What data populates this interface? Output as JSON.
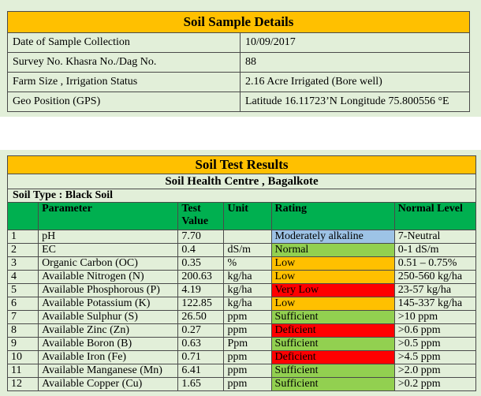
{
  "details": {
    "title": "Soil Sample Details",
    "rows": [
      {
        "label": "Date of Sample Collection",
        "value": "10/09/2017"
      },
      {
        "label": "Survey No. Khasra No./Dag No.",
        "value": "88"
      },
      {
        "label": "Farm Size , Irrigation Status",
        "value": "2.16 Acre Irrigated (Bore well)"
      },
      {
        "label": "Geo Position (GPS)",
        "value": "Latitude 16.11723’N   Longitude 75.800556 °E"
      }
    ]
  },
  "results": {
    "title": "Soil Test Results",
    "centre": "Soil Health Centre , Bagalkote",
    "soil_type": "Soil Type : Black Soil",
    "headers": {
      "no": "",
      "parameter": "Parameter",
      "test_value": "Test Value",
      "unit": "Unit",
      "rating": "Rating",
      "normal_level": "Normal Level"
    },
    "rating_colors": {
      "Moderately alkaline": "#9dc3e6",
      "Normal": "#92d050",
      "Low": "#ffc000",
      "Very Low": "#ff0000",
      "Sufficient": "#92d050",
      "Deficient": "#ff0000"
    },
    "rows": [
      {
        "no": "1",
        "parameter": "pH",
        "value": "7.70",
        "unit": "",
        "rating": "Moderately alkaline",
        "normal": "7-Neutral"
      },
      {
        "no": "2",
        "parameter": "EC",
        "value": "0.4",
        "unit": "dS/m",
        "rating": "Normal",
        "normal": "0-1 dS/m"
      },
      {
        "no": "3",
        "parameter": "Organic Carbon (OC)",
        "value": "0.35",
        "unit": "%",
        "rating": "Low",
        "normal": "0.51 – 0.75%"
      },
      {
        "no": "4",
        "parameter": "Available Nitrogen (N)",
        "value": "200.63",
        "unit": "kg/ha",
        "rating": "Low",
        "normal": "250-560 kg/ha"
      },
      {
        "no": "5",
        "parameter": "Available Phosphorous (P)",
        "value": "4.19",
        "unit": "kg/ha",
        "rating": "Very Low",
        "normal": "23-57 kg/ha"
      },
      {
        "no": "6",
        "parameter": "Available Potassium (K)",
        "value": "122.85",
        "unit": "kg/ha",
        "rating": "Low",
        "normal": "145-337 kg/ha"
      },
      {
        "no": "7",
        "parameter": "Available Sulphur (S)",
        "value": "26.50",
        "unit": "ppm",
        "rating": "Sufficient",
        "normal": ">10 ppm"
      },
      {
        "no": "8",
        "parameter": "Available Zinc (Zn)",
        "value": "0.27",
        "unit": "ppm",
        "rating": "Deficient",
        "normal": ">0.6 ppm"
      },
      {
        "no": "9",
        "parameter": "Available Boron (B)",
        "value": "0.63",
        "unit": "Ppm",
        "rating": "Sufficient",
        "normal": ">0.5 ppm"
      },
      {
        "no": "10",
        "parameter": "Available Iron (Fe)",
        "value": "0.71",
        "unit": "ppm",
        "rating": "Deficient",
        "normal": ">4.5 ppm"
      },
      {
        "no": "11",
        "parameter": "Available Manganese (Mn)",
        "value": "6.41",
        "unit": "ppm",
        "rating": "Sufficient",
        "normal": ">2.0 ppm"
      },
      {
        "no": "12",
        "parameter": "Available Copper (Cu)",
        "value": "1.65",
        "unit": "ppm",
        "rating": "Sufficient",
        "normal": ">0.2 ppm"
      }
    ]
  }
}
